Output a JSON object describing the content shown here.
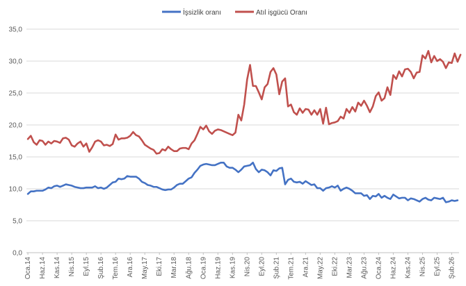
{
  "chart_data": {
    "type": "line",
    "title": "",
    "xlabel": "",
    "ylabel": "",
    "ylim": [
      0,
      35
    ],
    "yticks": [
      "0,0",
      "5,0",
      "10,0",
      "15,0",
      "20,0",
      "25,0",
      "30,0",
      "35,0"
    ],
    "ytick_values": [
      0,
      5,
      10,
      15,
      20,
      25,
      30,
      35
    ],
    "xtick_labels": [
      "Oca.14",
      "Haz.14",
      "Kas.14",
      "Nis.15",
      "Eyl.15",
      "Şub.16",
      "Tem.16",
      "Ara.16",
      "May.17",
      "Eki.17",
      "Mar.18",
      "Ağu.18",
      "Oca.19",
      "Haz.19",
      "Kas.19",
      "Nis.20",
      "Eyl.20",
      "Şub.21",
      "Tem.21",
      "Ara.21",
      "May.22",
      "Eki.22",
      "Mar.23",
      "Ağu.23",
      "Oca.24",
      "Haz.24",
      "Kas.24",
      "Nis.25",
      "Eyl.25",
      "Şub.26"
    ],
    "xtick_step_months": 5,
    "start": "Oca.14",
    "grid": true,
    "legend_position": "top",
    "series": [
      {
        "name": "İşsizlik oranı",
        "color": "#4472c4",
        "values": [
          9.2,
          9.6,
          9.6,
          9.7,
          9.7,
          9.7,
          9.9,
          10.2,
          10.1,
          10.4,
          10.5,
          10.3,
          10.5,
          10.7,
          10.6,
          10.5,
          10.3,
          10.2,
          10.1,
          10.1,
          10.2,
          10.2,
          10.2,
          10.4,
          10.1,
          10.2,
          10.0,
          10.2,
          10.6,
          11.0,
          11.1,
          11.6,
          11.5,
          11.6,
          12.0,
          11.9,
          11.9,
          11.9,
          11.6,
          11.1,
          10.9,
          10.6,
          10.5,
          10.3,
          10.3,
          10.1,
          9.9,
          9.8,
          9.9,
          9.9,
          10.2,
          10.6,
          10.8,
          10.8,
          11.2,
          11.6,
          11.8,
          12.5,
          13.0,
          13.6,
          13.8,
          13.9,
          13.8,
          13.7,
          13.7,
          13.9,
          14.1,
          14.1,
          13.5,
          13.3,
          13.3,
          13.0,
          12.6,
          13.0,
          13.5,
          13.6,
          13.7,
          14.1,
          13.1,
          12.6,
          13.0,
          12.9,
          12.6,
          12.1,
          12.9,
          12.8,
          13.2,
          13.3,
          10.7,
          11.4,
          11.6,
          11.1,
          11.0,
          11.1,
          10.8,
          11.2,
          10.9,
          10.6,
          10.7,
          10.1,
          10.1,
          9.7,
          10.1,
          10.2,
          10.4,
          10.2,
          10.5,
          9.7,
          10.0,
          10.2,
          10.0,
          9.7,
          9.3,
          9.3,
          9.3,
          8.9,
          9.0,
          8.4,
          8.9,
          8.8,
          9.2,
          8.6,
          8.9,
          8.6,
          8.4,
          9.1,
          8.8,
          8.5,
          8.6,
          8.6,
          8.2,
          8.5,
          8.4,
          8.2,
          8.0,
          8.4,
          8.6,
          8.3,
          8.2,
          8.6,
          8.5,
          8.4,
          8.6,
          7.9,
          8.0,
          8.2,
          8.1,
          8.2
        ]
      },
      {
        "name": "Atıl işgücü Oranı",
        "color": "#c0504d",
        "values": [
          17.8,
          18.3,
          17.3,
          16.9,
          17.6,
          17.5,
          16.9,
          17.4,
          17.1,
          17.5,
          17.4,
          17.2,
          17.9,
          18.0,
          17.7,
          16.8,
          16.6,
          17.1,
          17.4,
          16.6,
          17.1,
          15.8,
          16.5,
          17.4,
          17.6,
          17.4,
          16.8,
          16.9,
          16.7,
          17.0,
          18.5,
          17.7,
          17.9,
          17.9,
          18.0,
          18.3,
          18.9,
          18.4,
          18.2,
          17.6,
          16.9,
          16.6,
          16.3,
          16.1,
          15.5,
          15.6,
          16.2,
          16.0,
          16.6,
          16.2,
          15.9,
          15.9,
          16.3,
          16.4,
          16.4,
          16.2,
          17.1,
          17.6,
          18.6,
          19.7,
          19.3,
          19.9,
          19.0,
          18.6,
          19.1,
          19.3,
          19.2,
          19.0,
          18.8,
          18.6,
          18.4,
          18.8,
          21.6,
          20.7,
          23.2,
          27.1,
          29.4,
          26.1,
          26.1,
          25.1,
          24.0,
          25.9,
          26.4,
          28.3,
          28.9,
          27.9,
          24.8,
          26.8,
          27.3,
          22.9,
          23.2,
          22.0,
          21.6,
          22.6,
          21.9,
          22.5,
          22.4,
          21.6,
          22.3,
          21.6,
          22.5,
          20.2,
          22.7,
          20.1,
          20.3,
          20.4,
          20.6,
          21.3,
          21.0,
          22.5,
          21.9,
          22.8,
          22.1,
          23.5,
          23.0,
          23.8,
          23.0,
          22.0,
          22.9,
          24.5,
          25.1,
          23.8,
          24.2,
          25.9,
          24.7,
          27.8,
          27.2,
          28.4,
          27.6,
          28.7,
          28.8,
          28.3,
          27.3,
          28.2,
          28.3,
          30.9,
          30.4,
          31.6,
          29.8,
          30.8,
          30.0,
          30.3,
          29.9,
          28.9,
          29.8,
          29.7,
          31.2,
          29.9,
          31.0
        ]
      }
    ]
  }
}
